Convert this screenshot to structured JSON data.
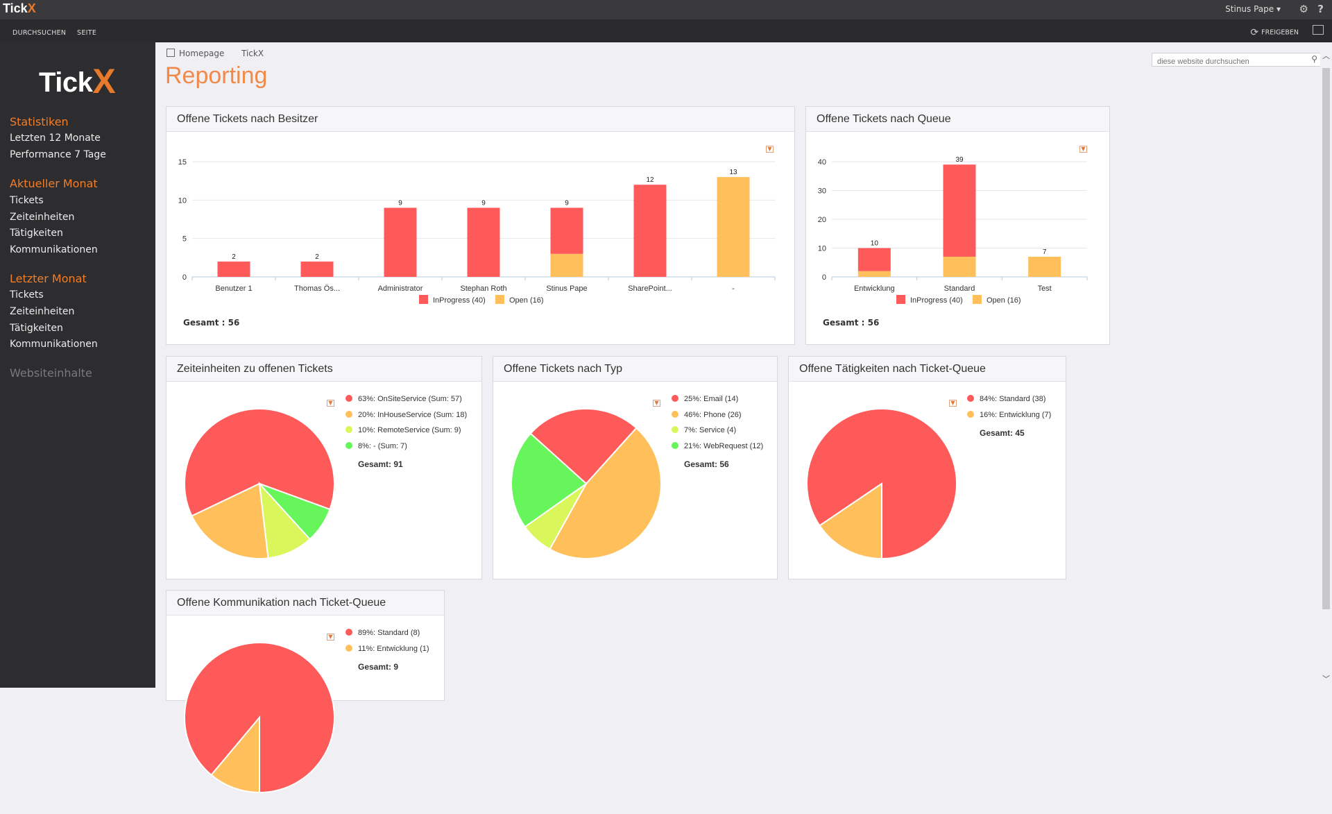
{
  "topbar": {
    "logo_text": "Tick",
    "logo_x": "X",
    "user": "Stinus Pape ▾",
    "settings_glyph": "⚙",
    "help_glyph": "?"
  },
  "ribbon": {
    "tab1": "DURCHSUCHEN",
    "tab2": "SEITE",
    "share": "FREIGEBEN"
  },
  "sidebar": {
    "logo_text": "Tick",
    "logo_x": "X",
    "sections": [
      {
        "heading": "Statistiken",
        "items": [
          "Letzten 12 Monate",
          "Performance 7 Tage"
        ]
      },
      {
        "heading": "Aktueller Monat",
        "items": [
          "Tickets",
          "Zeiteinheiten",
          "Tätigkeiten",
          "Kommunikationen"
        ]
      },
      {
        "heading": "Letzter Monat",
        "items": [
          "Tickets",
          "Zeiteinheiten",
          "Tätigkeiten",
          "Kommunikationen"
        ]
      }
    ],
    "footer": "Websiteinhalte"
  },
  "breadcrumb": {
    "home": "Homepage",
    "current": "TickX"
  },
  "page_title": "Reporting",
  "search": {
    "placeholder": "diese website durchsuchen"
  },
  "colors": {
    "inprogress": "#ff5a5a",
    "open": "#ffbf5a",
    "lime": "#d9f75a",
    "green": "#66f55a",
    "accent": "#ef8a4a"
  },
  "chart_data": [
    {
      "type": "bar",
      "title": "Offene Tickets nach Besitzer",
      "categories": [
        "Benutzer 1",
        "Thomas Ös...",
        "Administrator",
        "Stephan Roth",
        "Stinus Pape",
        "SharePoint...",
        "-"
      ],
      "series": [
        {
          "name": "InProgress (40)",
          "values": [
            2,
            2,
            9,
            9,
            6,
            12,
            0
          ]
        },
        {
          "name": "Open (16)",
          "values": [
            0,
            0,
            0,
            0,
            3,
            0,
            13
          ]
        }
      ],
      "totals": [
        2,
        2,
        9,
        9,
        9,
        12,
        13
      ],
      "ylim": [
        0,
        15
      ],
      "yticks": [
        0,
        5,
        10,
        15
      ],
      "total_label": "Gesamt : 56"
    },
    {
      "type": "bar",
      "title": "Offene Tickets nach Queue",
      "categories": [
        "Entwicklung",
        "Standard",
        "Test"
      ],
      "series": [
        {
          "name": "InProgress (40)",
          "values": [
            8,
            32,
            0
          ]
        },
        {
          "name": "Open (16)",
          "values": [
            2,
            7,
            7
          ]
        }
      ],
      "totals": [
        10,
        39,
        7
      ],
      "ylim": [
        0,
        40
      ],
      "yticks": [
        0,
        10,
        20,
        30,
        40
      ],
      "total_label": "Gesamt : 56"
    },
    {
      "type": "pie",
      "title": "Zeiteinheiten zu offenen Tickets",
      "slices": [
        {
          "label": "63%: OnSiteService (Sum: 57)",
          "value": 57
        },
        {
          "label": "20%: InHouseService (Sum: 18)",
          "value": 18
        },
        {
          "label": "10%: RemoteService (Sum: 9)",
          "value": 9
        },
        {
          "label": "8%: - (Sum: 7)",
          "value": 7
        }
      ],
      "total_label": "Gesamt: 91"
    },
    {
      "type": "pie",
      "title": "Offene Tickets nach Typ",
      "slices": [
        {
          "label": "25%: Email (14)",
          "value": 14
        },
        {
          "label": "46%: Phone (26)",
          "value": 26
        },
        {
          "label": "7%: Service (4)",
          "value": 4
        },
        {
          "label": "21%: WebRequest (12)",
          "value": 12
        }
      ],
      "total_label": "Gesamt: 56"
    },
    {
      "type": "pie",
      "title": "Offene Tätigkeiten nach Ticket-Queue",
      "slices": [
        {
          "label": "84%: Standard (38)",
          "value": 38
        },
        {
          "label": "16%: Entwicklung (7)",
          "value": 7
        }
      ],
      "total_label": "Gesamt: 45"
    },
    {
      "type": "pie",
      "title": "Offene Kommunikation nach Ticket-Queue",
      "slices": [
        {
          "label": "89%: Standard (8)",
          "value": 8
        },
        {
          "label": "11%: Entwicklung (1)",
          "value": 1
        }
      ],
      "total_label": "Gesamt: 9"
    }
  ]
}
